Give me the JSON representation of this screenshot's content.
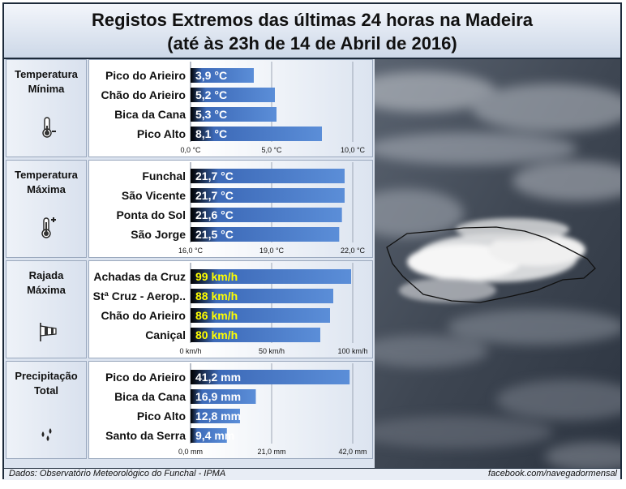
{
  "title": {
    "line1": "Registos Extremos das últimas 24 horas na Madeira",
    "line2": "(até às 23h de 14 de Abril de 2016)"
  },
  "footer": {
    "source": "Dados:  Observatório Meteorológico do Funchal - IPMA",
    "credit": "facebook.com/navegadormensal"
  },
  "colors": {
    "bar": "#5b8ed8",
    "bar_dark": "#000000",
    "value_white": "#ffffff",
    "value_yellow": "#ffff00"
  },
  "panels": [
    {
      "label_l1": "Temperatura",
      "label_l2": "Mínima",
      "icon": "thermometer-minus-icon"
    },
    {
      "label_l1": "Temperatura",
      "label_l2": "Máxima",
      "icon": "thermometer-plus-icon"
    },
    {
      "label_l1": "Rajada",
      "label_l2": "Máxima",
      "icon": "windsock-icon"
    },
    {
      "label_l1": "Precipitação",
      "label_l2": "Total",
      "icon": "raindrops-icon"
    }
  ],
  "chart_data": [
    {
      "type": "bar",
      "orientation": "horizontal",
      "categories": [
        "Pico do Arieiro",
        "Chão do Arieiro",
        "Bica da Cana",
        "Pico Alto"
      ],
      "values": [
        3.9,
        5.2,
        5.3,
        8.1
      ],
      "value_labels": [
        "3,9 °C",
        "5,2 °C",
        "5,3 °C",
        "8,1 °C"
      ],
      "xlim": [
        0,
        10
      ],
      "ticks": [
        "0,0 °C",
        "5,0 °C",
        "10,0 °C"
      ],
      "value_color": "white",
      "grid": true
    },
    {
      "type": "bar",
      "orientation": "horizontal",
      "categories": [
        "Funchal",
        "São Vicente",
        "Ponta do Sol",
        "São Jorge"
      ],
      "values": [
        21.7,
        21.7,
        21.6,
        21.5
      ],
      "value_labels": [
        "21,7 °C",
        "21,7 °C",
        "21,6 °C",
        "21,5 °C"
      ],
      "xlim": [
        16,
        22
      ],
      "ticks": [
        "16,0 °C",
        "19,0 °C",
        "22,0 °C"
      ],
      "value_color": "white",
      "grid": true
    },
    {
      "type": "bar",
      "orientation": "horizontal",
      "categories": [
        "Achadas da Cruz",
        "Stª Cruz - Aerop..",
        "Chão do Arieiro",
        "Caniçal"
      ],
      "values": [
        99,
        88,
        86,
        80
      ],
      "value_labels": [
        "99 km/h",
        "88 km/h",
        "86 km/h",
        "80 km/h"
      ],
      "xlim": [
        0,
        100
      ],
      "ticks": [
        "0 km/h",
        "50 km/h",
        "100 km/h"
      ],
      "value_color": "yellow",
      "grid": true
    },
    {
      "type": "bar",
      "orientation": "horizontal",
      "categories": [
        "Pico do Arieiro",
        "Bica da Cana",
        "Pico Alto",
        "Santo da Serra"
      ],
      "values": [
        41.2,
        16.9,
        12.8,
        9.4
      ],
      "value_labels": [
        "41,2 mm",
        "16,9 mm",
        "12,8 mm",
        "9,4 mm"
      ],
      "xlim": [
        0,
        42
      ],
      "ticks": [
        "0,0 mm",
        "21,0 mm",
        "42,0 mm"
      ],
      "value_color": "white",
      "grid": true
    }
  ]
}
